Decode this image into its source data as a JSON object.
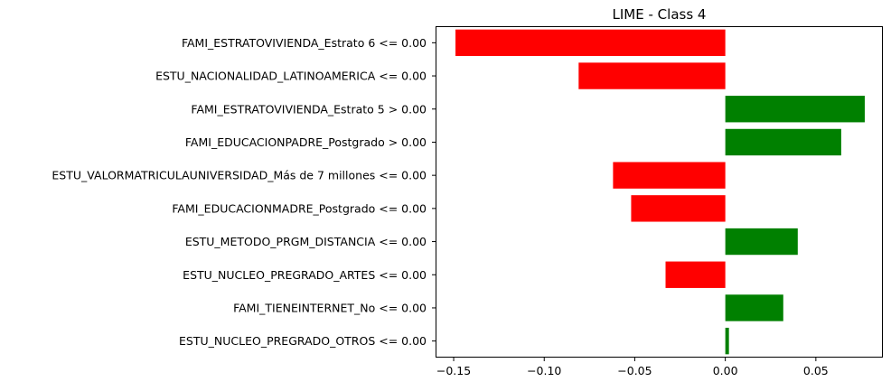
{
  "chart_data": {
    "type": "bar",
    "orientation": "horizontal",
    "title": "LIME - Class 4",
    "xlabel": "",
    "ylabel": "",
    "xlim": [
      -0.16,
      0.087
    ],
    "xticks": [
      -0.15,
      -0.1,
      -0.05,
      0.0,
      0.05
    ],
    "xtick_labels": [
      "−0.15",
      "−0.10",
      "−0.05",
      "0.00",
      "0.05"
    ],
    "grid": false,
    "legend": "none",
    "colors": {
      "positive": "#008000",
      "negative": "#ff0000"
    },
    "categories": [
      "FAMI_ESTRATOVIVIENDA_Estrato 6 <= 0.00",
      "ESTU_NACIONALIDAD_LATINOAMERICA <= 0.00",
      "FAMI_ESTRATOVIVIENDA_Estrato 5 > 0.00",
      "FAMI_EDUCACIONPADRE_Postgrado > 0.00",
      "ESTU_VALORMATRICULAUNIVERSIDAD_Más de 7 millones <= 0.00",
      "FAMI_EDUCACIONMADRE_Postgrado <= 0.00",
      "ESTU_METODO_PRGM_DISTANCIA <= 0.00",
      "ESTU_NUCLEO_PREGRADO_ARTES <= 0.00",
      "FAMI_TIENEINTERNET_No <= 0.00",
      "ESTU_NUCLEO_PREGRADO_OTROS <= 0.00"
    ],
    "values": [
      -0.149,
      -0.081,
      0.077,
      0.064,
      -0.062,
      -0.052,
      0.04,
      -0.033,
      0.032,
      0.002
    ]
  }
}
